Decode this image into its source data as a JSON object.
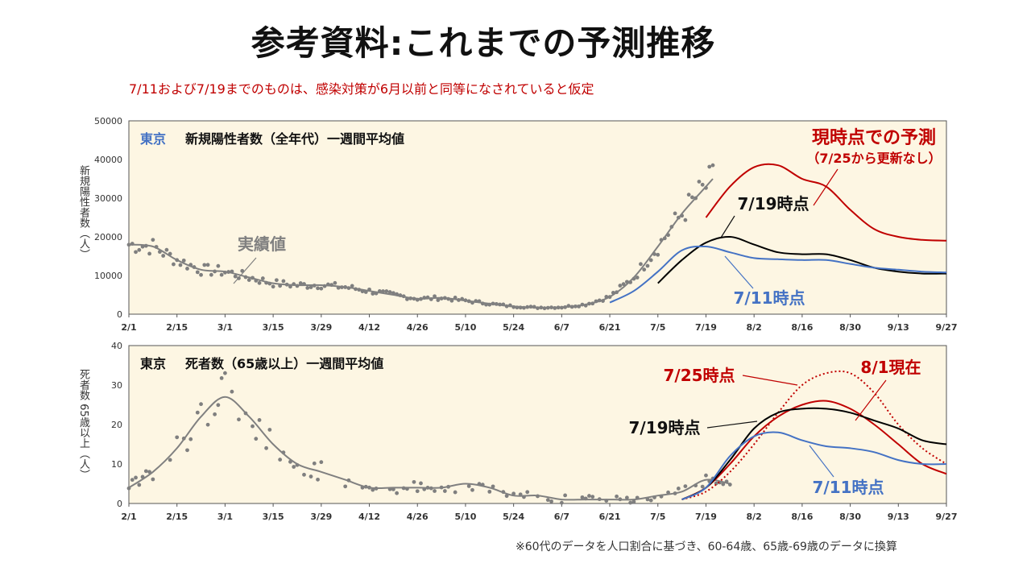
{
  "slide": {
    "title": "参考資料:これまでの予測推移",
    "subtitle": "7/11および7/19までのものは、感染対策が6月以前と同等になされていると仮定",
    "footnote": "※60代のデータを人口割合に基づき、60-64歳、65歳-69歳のデータに換算"
  },
  "chart_data": [
    {
      "type": "line",
      "title_region": "東京",
      "title": "新規陽性者数（全年代）一週間平均値",
      "ylabel": "新規陽性者数（人）",
      "categories": [
        "2/1",
        "2/15",
        "3/1",
        "3/15",
        "3/29",
        "4/12",
        "4/26",
        "5/10",
        "5/24",
        "6/7",
        "6/21",
        "7/5",
        "7/19",
        "8/2",
        "8/16",
        "8/30",
        "9/13",
        "9/27"
      ],
      "ylim": [
        0,
        50000
      ],
      "yticks": [
        "0",
        "10000",
        "20000",
        "30000",
        "40000",
        "50000"
      ],
      "grid": false,
      "annotations": {
        "actual": "実績値",
        "current": "現時点での予測",
        "current_note": "（7/25から更新なし）",
        "p719": "7/19時点",
        "p711": "7/11時点"
      },
      "series": [
        {
          "name": "実績値",
          "color": "#808080",
          "x": [
            0,
            7,
            14,
            21,
            28,
            35,
            42,
            49,
            56,
            63,
            70,
            77,
            84,
            91,
            98,
            105,
            112,
            119,
            126,
            133,
            140,
            147,
            154,
            161,
            168,
            170
          ],
          "y": [
            18000,
            17500,
            14000,
            11500,
            11000,
            9500,
            8000,
            7500,
            7500,
            7000,
            6000,
            5000,
            4000,
            4200,
            3500,
            2700,
            2000,
            1700,
            1800,
            2500,
            4500,
            9500,
            17500,
            26000,
            33000,
            35000
          ]
        },
        {
          "name": "現時点での予測",
          "color": "#c00000",
          "x": [
            168,
            175,
            182,
            189,
            196,
            203,
            210,
            217,
            224,
            231,
            238
          ],
          "y": [
            25000,
            33000,
            38000,
            38500,
            35000,
            33000,
            27000,
            22000,
            20000,
            19200,
            19000
          ]
        },
        {
          "name": "7/19時点",
          "color": "#000000",
          "x": [
            154,
            161,
            168,
            175,
            182,
            189,
            196,
            203,
            210,
            217,
            224,
            231,
            238
          ],
          "y": [
            8000,
            14000,
            18500,
            20000,
            18000,
            16000,
            15500,
            15500,
            14000,
            12000,
            11000,
            10500,
            10500
          ]
        },
        {
          "name": "7/11時点",
          "color": "#4472c4",
          "x": [
            140,
            147,
            154,
            161,
            168,
            175,
            182,
            189,
            196,
            203,
            210,
            217,
            224,
            231,
            238
          ],
          "y": [
            3000,
            6000,
            11000,
            16500,
            17500,
            16000,
            14500,
            14200,
            14000,
            14000,
            13000,
            12000,
            11500,
            11000,
            10800
          ]
        }
      ]
    },
    {
      "type": "line",
      "title_region": "東京",
      "title": "死者数（65歳以上）一週間平均値",
      "ylabel": "死者数 65歳以上（人）",
      "categories": [
        "2/1",
        "2/15",
        "3/1",
        "3/15",
        "3/29",
        "4/12",
        "4/26",
        "5/10",
        "5/24",
        "6/7",
        "6/21",
        "7/5",
        "7/19",
        "8/2",
        "8/16",
        "8/30",
        "9/13",
        "9/27"
      ],
      "ylim": [
        0,
        40
      ],
      "yticks": [
        "0",
        "10",
        "20",
        "30",
        "40"
      ],
      "grid": false,
      "annotations": {
        "p725": "7/25時点",
        "p801": "8/1現在",
        "p719": "7/19時点",
        "p711": "7/11時点"
      },
      "series": [
        {
          "name": "実績値",
          "color": "#808080",
          "x": [
            0,
            7,
            14,
            21,
            28,
            35,
            42,
            49,
            56,
            63,
            70,
            77,
            84,
            91,
            98,
            105,
            112,
            119,
            126,
            133,
            140,
            147,
            154,
            161,
            168,
            175
          ],
          "y": [
            4,
            8,
            14,
            22,
            27,
            22,
            15,
            10,
            8,
            6,
            4,
            4,
            4,
            4,
            5,
            4,
            2,
            2,
            1,
            1,
            1,
            1,
            2,
            3,
            6,
            5
          ]
        },
        {
          "name": "8/1現在",
          "color": "#c00000",
          "dash": false,
          "x": [
            161,
            168,
            175,
            182,
            189,
            196,
            203,
            210,
            217,
            224,
            231,
            238
          ],
          "y": [
            1,
            4,
            10,
            17,
            22,
            25,
            26,
            24,
            20,
            15,
            10,
            7.5
          ]
        },
        {
          "name": "7/25時点",
          "color": "#c00000",
          "dash": true,
          "x": [
            161,
            168,
            175,
            182,
            189,
            196,
            203,
            210,
            217,
            224,
            231,
            238
          ],
          "y": [
            1,
            3,
            8,
            15,
            23,
            30,
            33,
            33,
            28,
            20,
            14,
            10
          ]
        },
        {
          "name": "7/19時点",
          "color": "#000000",
          "x": [
            161,
            168,
            175,
            182,
            189,
            196,
            203,
            210,
            217,
            224,
            231,
            238
          ],
          "y": [
            1,
            4,
            11,
            19,
            23,
            24,
            24,
            23,
            21,
            19,
            16,
            15
          ]
        },
        {
          "name": "7/11時点",
          "color": "#4472c4",
          "x": [
            161,
            168,
            175,
            182,
            189,
            196,
            203,
            210,
            217,
            224,
            231,
            238
          ],
          "y": [
            1,
            4,
            12,
            17,
            18,
            16,
            14.5,
            14,
            13,
            11,
            10,
            10
          ]
        }
      ]
    }
  ]
}
